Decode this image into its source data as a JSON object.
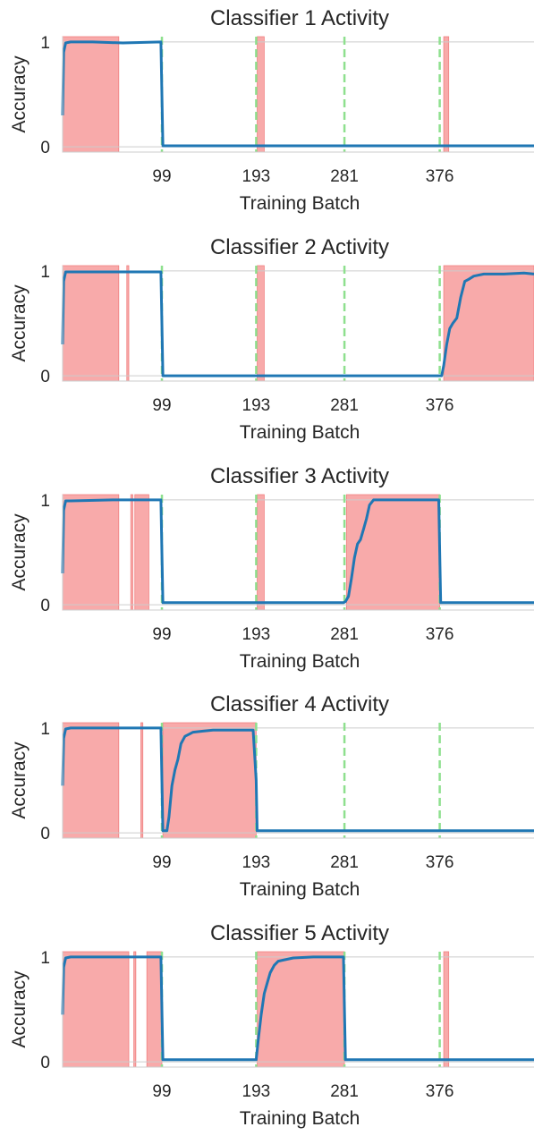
{
  "chart_data": [
    {
      "type": "line",
      "title": "Classifier 1 Activity",
      "xlabel": "Training Batch",
      "ylabel": "Accuracy",
      "xlim": [
        0,
        470
      ],
      "ylim": [
        -0.05,
        1.05
      ],
      "xticks": [
        99,
        193,
        281,
        376
      ],
      "xtick_labels": [
        "99",
        "193",
        "281",
        "376"
      ],
      "yticks": [
        0,
        1
      ],
      "ytick_labels": [
        "0",
        "1"
      ],
      "grid": true,
      "task_boundaries": [
        99,
        193,
        281,
        376
      ],
      "active_regions": [
        [
          0,
          56
        ],
        [
          194,
          201
        ],
        [
          380,
          385
        ]
      ],
      "series": [
        {
          "color": "#1f77b4",
          "x": [
            0,
            1,
            3,
            8,
            30,
            60,
            98,
            99,
            100,
            470
          ],
          "values": [
            0.3,
            0.9,
            0.99,
            1.0,
            1.0,
            0.99,
            1.0,
            0.5,
            0.01,
            0.01
          ]
        }
      ]
    },
    {
      "type": "line",
      "title": "Classifier 2 Activity",
      "xlabel": "Training Batch",
      "ylabel": "Accuracy",
      "xlim": [
        0,
        470
      ],
      "ylim": [
        -0.05,
        1.05
      ],
      "xticks": [
        99,
        193,
        281,
        376
      ],
      "xtick_labels": [
        "99",
        "193",
        "281",
        "376"
      ],
      "yticks": [
        0,
        1
      ],
      "ytick_labels": [
        "0",
        "1"
      ],
      "grid": true,
      "task_boundaries": [
        99,
        193,
        281,
        376
      ],
      "active_regions": [
        [
          0,
          56
        ],
        [
          64,
          66
        ],
        [
          194,
          201
        ],
        [
          380,
          470
        ]
      ],
      "series": [
        {
          "color": "#1f77b4",
          "x": [
            0,
            1,
            3,
            8,
            50,
            98,
            99,
            100,
            378,
            380,
            383,
            386,
            389,
            393,
            397,
            401,
            405,
            410,
            420,
            440,
            460,
            470
          ],
          "values": [
            0.3,
            0.9,
            0.99,
            0.99,
            0.99,
            0.99,
            0.5,
            0.0,
            0.0,
            0.1,
            0.3,
            0.45,
            0.5,
            0.55,
            0.75,
            0.9,
            0.92,
            0.95,
            0.97,
            0.97,
            0.98,
            0.97
          ]
        }
      ]
    },
    {
      "type": "line",
      "title": "Classifier 3 Activity",
      "xlabel": "Training Batch",
      "ylabel": "Accuracy",
      "xlim": [
        0,
        470
      ],
      "ylim": [
        -0.05,
        1.05
      ],
      "xticks": [
        99,
        193,
        281,
        376
      ],
      "xtick_labels": [
        "99",
        "193",
        "281",
        "376"
      ],
      "yticks": [
        0,
        1
      ],
      "ytick_labels": [
        "0",
        "1"
      ],
      "grid": true,
      "task_boundaries": [
        99,
        193,
        281,
        376
      ],
      "active_regions": [
        [
          0,
          56
        ],
        [
          68,
          70
        ],
        [
          72,
          86
        ],
        [
          194,
          201
        ],
        [
          283,
          376
        ]
      ],
      "series": [
        {
          "color": "#1f77b4",
          "x": [
            0,
            1,
            3,
            8,
            50,
            98,
            99,
            100,
            280,
            282,
            285,
            288,
            291,
            294,
            297,
            300,
            303,
            306,
            310,
            315,
            320,
            340,
            375,
            376,
            377,
            470
          ],
          "values": [
            0.3,
            0.9,
            0.99,
            0.99,
            1.0,
            1.0,
            0.5,
            0.02,
            0.02,
            0.03,
            0.08,
            0.25,
            0.45,
            0.58,
            0.62,
            0.72,
            0.82,
            0.95,
            1.0,
            1.0,
            1.0,
            1.0,
            1.0,
            0.5,
            0.02,
            0.02
          ]
        }
      ]
    },
    {
      "type": "line",
      "title": "Classifier 4 Activity",
      "xlabel": "Training Batch",
      "ylabel": "Accuracy",
      "xlim": [
        0,
        470
      ],
      "ylim": [
        -0.05,
        1.05
      ],
      "xticks": [
        99,
        193,
        281,
        376
      ],
      "xtick_labels": [
        "99",
        "193",
        "281",
        "376"
      ],
      "yticks": [
        0,
        1
      ],
      "ytick_labels": [
        "0",
        "1"
      ],
      "grid": true,
      "task_boundaries": [
        99,
        193,
        281,
        376
      ],
      "active_regions": [
        [
          0,
          56
        ],
        [
          78,
          80
        ],
        [
          100,
          193
        ]
      ],
      "series": [
        {
          "color": "#1f77b4",
          "x": [
            0,
            1,
            3,
            8,
            50,
            98,
            99,
            100,
            104,
            106,
            109,
            112,
            115,
            118,
            122,
            126,
            130,
            140,
            150,
            170,
            190,
            193,
            194,
            470
          ],
          "values": [
            0.45,
            0.9,
            0.99,
            1.0,
            1.0,
            1.0,
            0.5,
            0.02,
            0.02,
            0.15,
            0.45,
            0.6,
            0.7,
            0.85,
            0.92,
            0.94,
            0.96,
            0.97,
            0.98,
            0.98,
            0.98,
            0.5,
            0.02,
            0.02
          ]
        }
      ]
    },
    {
      "type": "line",
      "title": "Classifier 5 Activity",
      "xlabel": "Training Batch",
      "ylabel": "Accuracy",
      "xlim": [
        0,
        470
      ],
      "ylim": [
        -0.05,
        1.05
      ],
      "xticks": [
        99,
        193,
        281,
        376
      ],
      "xtick_labels": [
        "99",
        "193",
        "281",
        "376"
      ],
      "yticks": [
        0,
        1
      ],
      "ytick_labels": [
        "0",
        "1"
      ],
      "grid": true,
      "task_boundaries": [
        99,
        193,
        281,
        376
      ],
      "active_regions": [
        [
          0,
          66
        ],
        [
          71,
          73
        ],
        [
          84,
          99
        ],
        [
          194,
          281
        ],
        [
          380,
          385
        ]
      ],
      "series": [
        {
          "color": "#1f77b4",
          "x": [
            0,
            1,
            3,
            8,
            50,
            98,
            99,
            100,
            193,
            195,
            198,
            201,
            204,
            207,
            211,
            215,
            220,
            230,
            250,
            280,
            281,
            282,
            470
          ],
          "values": [
            0.45,
            0.9,
            0.99,
            1.0,
            1.0,
            1.0,
            0.5,
            0.02,
            0.02,
            0.2,
            0.45,
            0.65,
            0.75,
            0.85,
            0.92,
            0.96,
            0.97,
            0.99,
            1.0,
            1.0,
            0.5,
            0.02,
            0.02
          ]
        }
      ]
    }
  ]
}
